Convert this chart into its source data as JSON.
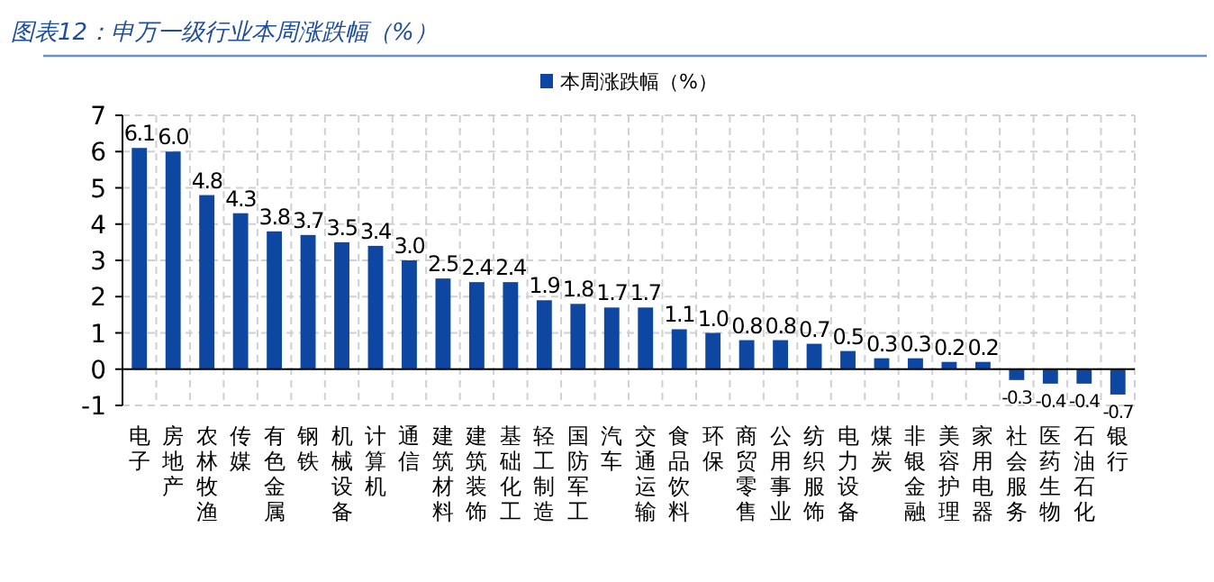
{
  "chart_data": {
    "type": "bar",
    "title": "图表12：申万一级行业本周涨跌幅（%）",
    "categories": [
      "电子",
      "房地产",
      "农林牧渔",
      "传媒",
      "有色金属",
      "钢铁",
      "机械设备",
      "计算机",
      "通信",
      "建筑材料",
      "建筑装饰",
      "基础化工",
      "轻工制造",
      "国防军工",
      "汽车",
      "交通运输",
      "食品饮料",
      "环保",
      "商贸零售",
      "公用事业",
      "纺织服饰",
      "电力设备",
      "煤炭",
      "非银金融",
      "美容护理",
      "家用电器",
      "社会服务",
      "医药生物",
      "石油石化",
      "银行"
    ],
    "series": [
      {
        "name": "本周涨跌幅（%）",
        "color": "#0d47a1",
        "values": [
          6.1,
          6.0,
          4.8,
          4.3,
          3.8,
          3.7,
          3.5,
          3.4,
          3.0,
          2.5,
          2.4,
          2.4,
          1.9,
          1.8,
          1.7,
          1.7,
          1.1,
          1.0,
          0.8,
          0.8,
          0.7,
          0.5,
          0.3,
          0.3,
          0.2,
          0.2,
          -0.3,
          -0.4,
          -0.4,
          -0.7
        ],
        "value_labels": [
          "6.1",
          "6.0",
          "4.8",
          "4.3",
          "3.8",
          "3.7",
          "3.5",
          "3.4",
          "3.0",
          "2.5",
          "2.4",
          "2.4",
          "1.9",
          "1.8",
          "1.7",
          "1.7",
          "1.1",
          "1.0",
          "0.8",
          "0.8",
          "0.7",
          "0.5",
          "0.3",
          "0.3",
          "0.2",
          "0.2",
          "-0.3",
          "-0.4",
          "-0.4",
          "-0.7"
        ]
      }
    ],
    "ylim": [
      -1,
      7
    ],
    "yticks": [
      -1,
      0,
      1,
      2,
      3,
      4,
      5,
      6,
      7
    ],
    "grid": true,
    "legend": "top"
  }
}
